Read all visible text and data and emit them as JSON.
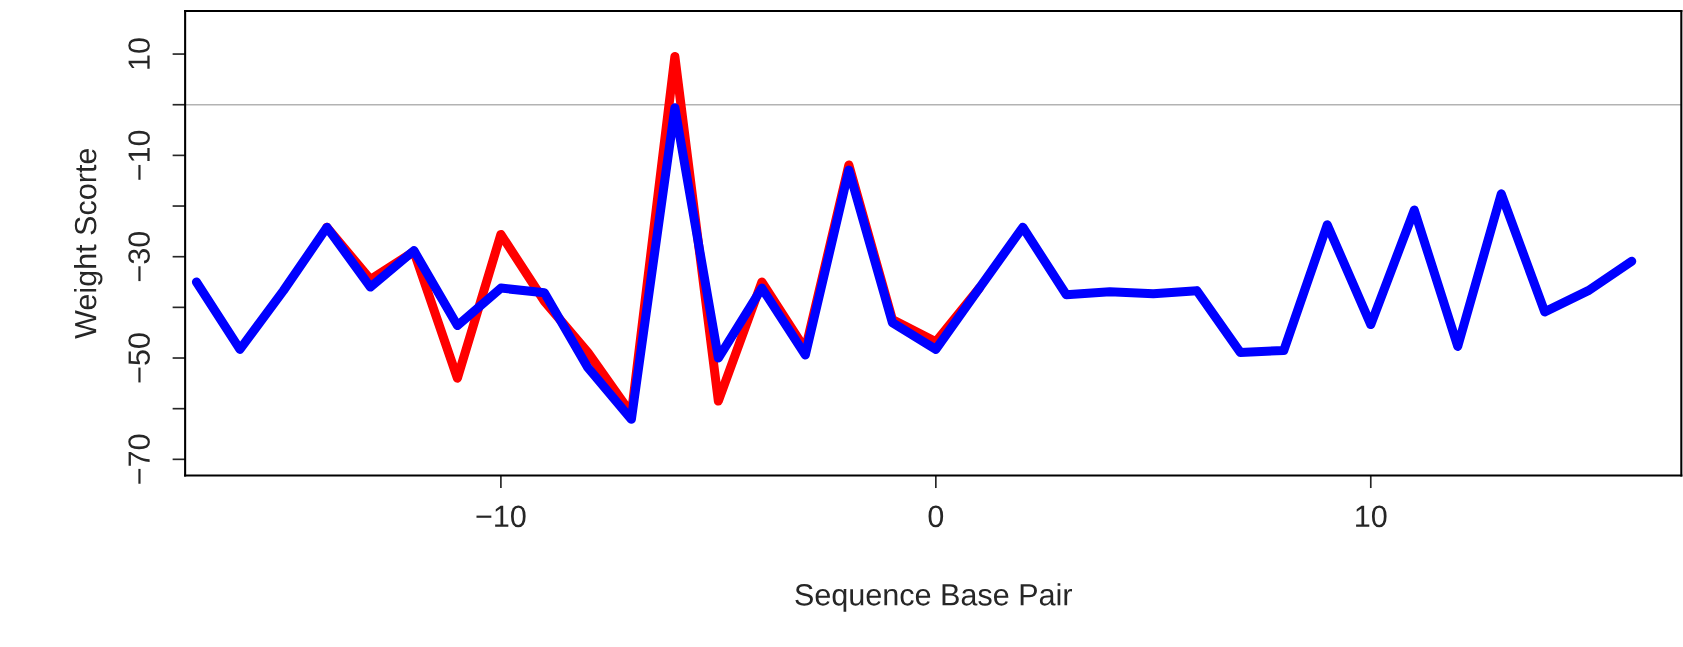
{
  "chart_data": {
    "type": "line",
    "xlabel": "Sequence Base Pair",
    "ylabel": "Weight Scorte",
    "x": [
      -17,
      -16,
      -15,
      -14,
      -13,
      -12,
      -11,
      -10,
      -9,
      -8,
      -7,
      -6,
      -5,
      -4,
      -3,
      -2,
      -1,
      0,
      1,
      2,
      3,
      4,
      5,
      6,
      7,
      8,
      9,
      10,
      11,
      12,
      13,
      14,
      15,
      16
    ],
    "series": [
      {
        "color": "#ff0000",
        "values": [
          null,
          null,
          null,
          -24.2,
          -34.5,
          -29.0,
          -54.0,
          -25.6,
          -38.8,
          -48.9,
          -61.0,
          9.5,
          -58.5,
          -35.0,
          -48.3,
          -11.9,
          -42.4,
          -46.8,
          -36.2,
          null,
          null,
          null,
          null,
          null,
          null,
          null,
          null,
          null,
          null,
          null,
          null,
          null,
          null,
          null
        ]
      },
      {
        "color": "#0000ff",
        "values": [
          -35.0,
          -48.3,
          -36.7,
          -24.2,
          -36.0,
          -28.8,
          -43.6,
          -36.2,
          -37.1,
          -51.9,
          -62.1,
          -0.6,
          -50.0,
          -36.2,
          -49.4,
          -12.9,
          -43.0,
          -48.3,
          -36.2,
          -24.2,
          -37.5,
          -36.9,
          -37.3,
          -36.7,
          -48.9,
          -48.5,
          -23.7,
          -43.4,
          -20.8,
          -47.7,
          -17.6,
          -40.9,
          -36.7,
          -30.9
        ]
      }
    ],
    "xlim": [
      -17.26,
      17.14
    ],
    "xticks": [
      -10,
      0,
      10
    ],
    "ylim": [
      -73.2,
      18.5
    ],
    "yticks": [
      10,
      {
        "value": 0,
        "label": null
      },
      -10,
      {
        "value": -20,
        "label": null
      },
      -30,
      {
        "value": -40,
        "label": null
      },
      -50,
      {
        "value": -60,
        "label": null
      },
      -70
    ],
    "ref_lines": [
      {
        "axis": "y",
        "value": 0,
        "color": "#b3b3b3"
      }
    ],
    "grid": false,
    "legend": false,
    "marker": "none",
    "line_style": "solid"
  }
}
